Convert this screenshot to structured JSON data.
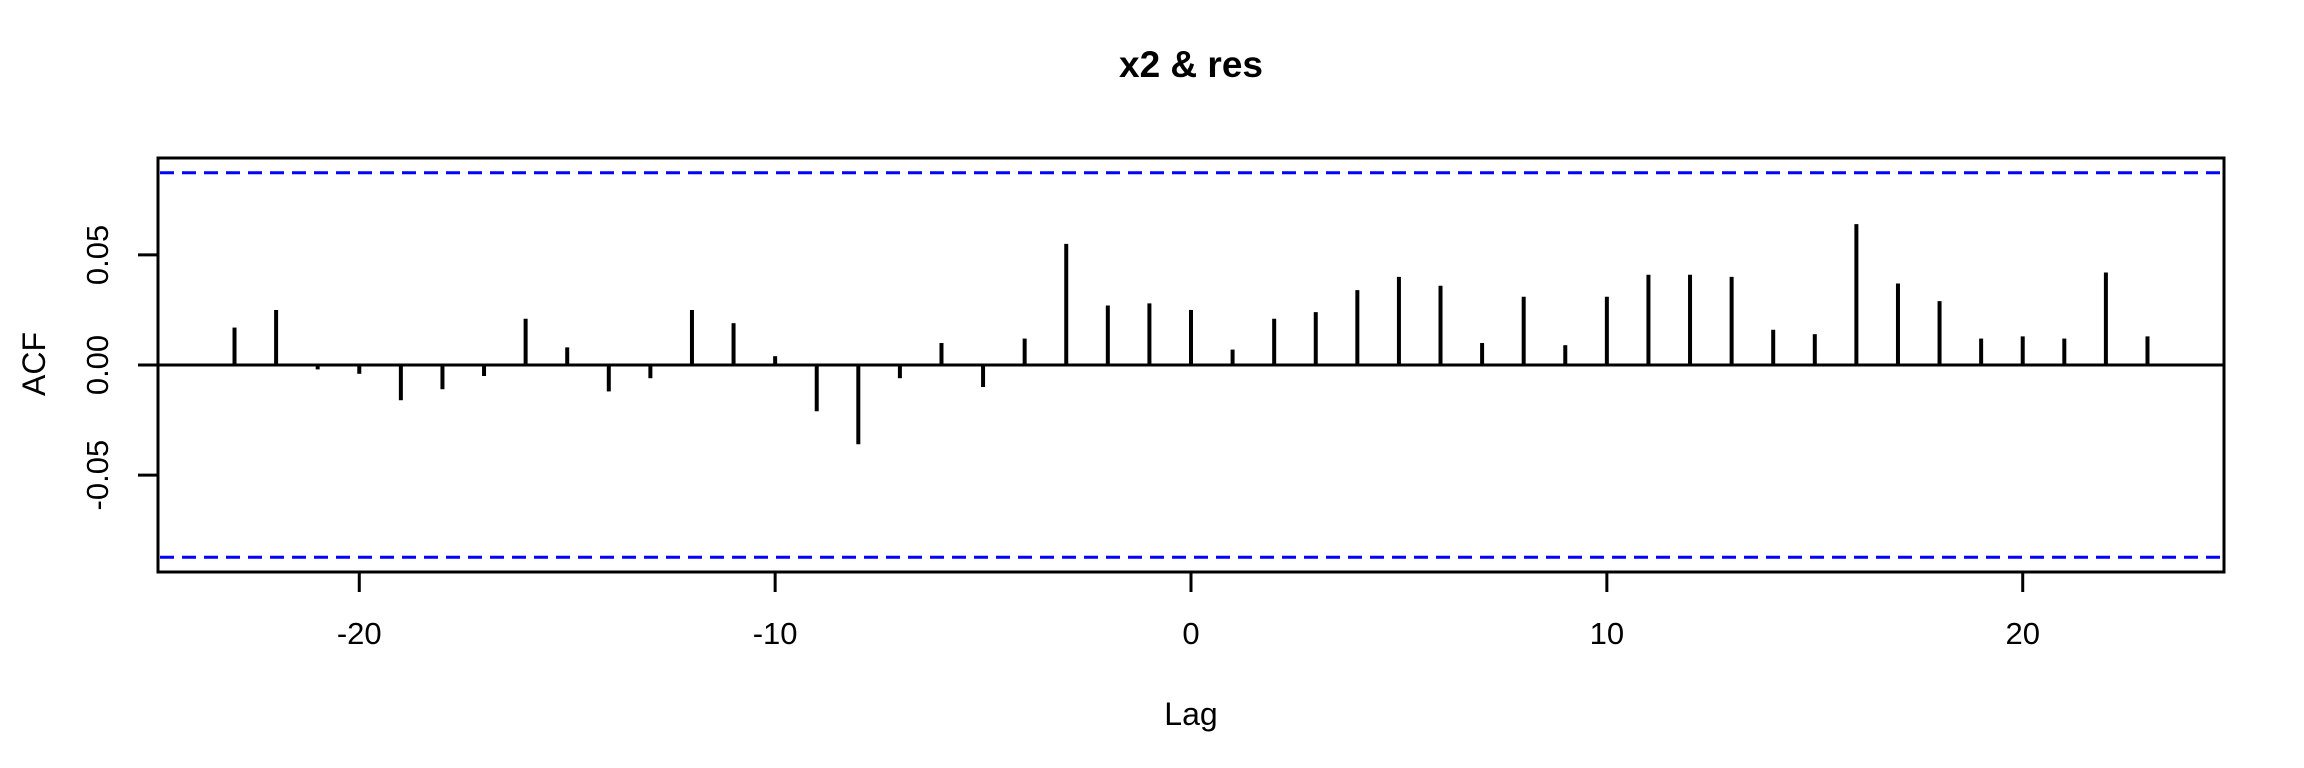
{
  "chart_data": {
    "type": "bar",
    "subtype": "cross-correlation-stem-plot",
    "title": "x2 & res",
    "xlabel": "Lag",
    "ylabel": "ACF",
    "x": [
      -23,
      -22,
      -21,
      -20,
      -19,
      -18,
      -17,
      -16,
      -15,
      -14,
      -13,
      -12,
      -11,
      -10,
      -9,
      -8,
      -7,
      -6,
      -5,
      -4,
      -3,
      -2,
      -1,
      0,
      1,
      2,
      3,
      4,
      5,
      6,
      7,
      8,
      9,
      10,
      11,
      12,
      13,
      14,
      15,
      16,
      17,
      18,
      19,
      20,
      21,
      22,
      23
    ],
    "values": [
      0.017,
      0.025,
      -0.002,
      -0.004,
      -0.016,
      -0.011,
      -0.005,
      0.021,
      0.008,
      -0.012,
      -0.006,
      0.025,
      0.019,
      0.004,
      -0.021,
      -0.036,
      -0.006,
      0.01,
      -0.01,
      0.012,
      0.055,
      0.027,
      0.028,
      0.025,
      0.007,
      0.021,
      0.024,
      0.034,
      0.04,
      0.036,
      0.01,
      0.031,
      0.009,
      0.031,
      0.041,
      0.041,
      0.04,
      0.016,
      0.014,
      0.064,
      0.037,
      0.029,
      0.012,
      0.013,
      0.012,
      0.042,
      0.013
    ],
    "xticks": {
      "values": [
        -20,
        -10,
        0,
        10,
        20
      ],
      "labels": [
        "-20",
        "-10",
        "0",
        "10",
        "20"
      ]
    },
    "yticks": {
      "values": [
        -0.05,
        0,
        0.05
      ],
      "labels": [
        "-0.05",
        "0.00",
        "0.05"
      ]
    },
    "xlim": [
      -24.84,
      24.84
    ],
    "ylim": [
      -0.094,
      0.094
    ],
    "confidence_bounds": {
      "upper": 0.0873,
      "lower": -0.0873,
      "line_style": "dashed",
      "color": "#0000FF"
    },
    "bar_color": "#000000",
    "axis_color": "#000000",
    "background_color": "#FFFFFF",
    "grid": false,
    "legend": null
  }
}
